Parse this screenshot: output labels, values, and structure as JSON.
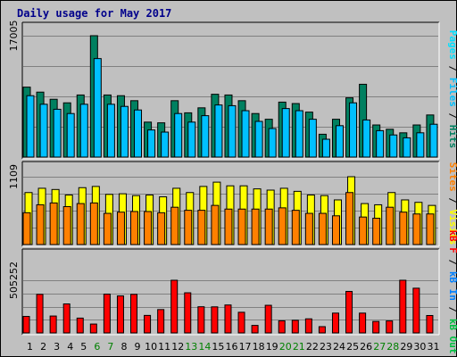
{
  "title": "Daily usage for May 2017",
  "colors": {
    "hits": "#008060",
    "files": "#00c0ff",
    "pages": "#00e0ff",
    "visits": "#ffff00",
    "sites": "#ff8000",
    "kbin": "#0080ff",
    "kbout": "#00c040",
    "kbf": "#ff0000",
    "weekend_label": "#008000",
    "title": "#00008b",
    "plot_bg": "#c0c0c0",
    "grid": "#808080"
  },
  "chart_data": [
    {
      "type": "bar",
      "name": "hits-files-pages",
      "categories": [
        "1",
        "2",
        "3",
        "4",
        "5",
        "6",
        "7",
        "8",
        "9",
        "10",
        "11",
        "12",
        "13",
        "14",
        "15",
        "16",
        "17",
        "18",
        "19",
        "20",
        "21",
        "22",
        "23",
        "24",
        "25",
        "26",
        "27",
        "28",
        "29",
        "30",
        "31"
      ],
      "weekend_days": [
        "6",
        "7",
        "13",
        "14",
        "20",
        "21",
        "27",
        "28"
      ],
      "max_label": "17005",
      "ylim": [
        0,
        17005
      ],
      "series": [
        {
          "name": "Hits",
          "values": [
            9800,
            9100,
            8100,
            7600,
            8700,
            17005,
            8700,
            8600,
            7900,
            4900,
            4800,
            7900,
            6200,
            6900,
            8800,
            8700,
            7900,
            6100,
            5300,
            7700,
            7500,
            6300,
            3200,
            5300,
            8300,
            10200,
            4500,
            3900,
            3400,
            4500,
            5900
          ]
        },
        {
          "name": "Files",
          "values": [
            8600,
            7400,
            6700,
            6100,
            7400,
            13800,
            7400,
            7100,
            6600,
            3800,
            3500,
            6100,
            4900,
            5800,
            7300,
            7200,
            6500,
            5000,
            4000,
            6800,
            6500,
            5300,
            2500,
            4400,
            7600,
            5200,
            3700,
            3100,
            2700,
            3400,
            4600
          ]
        },
        {
          "name": "Pages",
          "values": [
            0,
            0,
            0,
            0,
            0,
            0,
            0,
            0,
            0,
            0,
            0,
            0,
            0,
            0,
            0,
            0,
            0,
            0,
            0,
            0,
            0,
            0,
            0,
            0,
            0,
            0,
            0,
            0,
            0,
            0,
            0
          ]
        }
      ]
    },
    {
      "type": "bar",
      "name": "visits-sites",
      "categories": [
        "1",
        "2",
        "3",
        "4",
        "5",
        "6",
        "7",
        "8",
        "9",
        "10",
        "11",
        "12",
        "13",
        "14",
        "15",
        "16",
        "17",
        "18",
        "19",
        "20",
        "21",
        "22",
        "23",
        "24",
        "25",
        "26",
        "27",
        "28",
        "29",
        "30",
        "31"
      ],
      "max_label": "1109",
      "ylim": [
        0,
        1109
      ],
      "series": [
        {
          "name": "Visits",
          "values": [
            850,
            920,
            900,
            810,
            930,
            950,
            820,
            830,
            800,
            810,
            780,
            920,
            850,
            950,
            1020,
            960,
            960,
            910,
            890,
            920,
            870,
            810,
            800,
            730,
            1109,
            670,
            650,
            850,
            730,
            690,
            640
          ]
        },
        {
          "name": "Sites",
          "values": [
            520,
            650,
            680,
            620,
            670,
            680,
            510,
            530,
            540,
            540,
            520,
            610,
            560,
            560,
            640,
            580,
            580,
            580,
            580,
            600,
            560,
            510,
            510,
            470,
            850,
            450,
            430,
            610,
            530,
            500,
            500
          ]
        }
      ]
    },
    {
      "type": "bar",
      "name": "kbytes",
      "categories": [
        "1",
        "2",
        "3",
        "4",
        "5",
        "6",
        "7",
        "8",
        "9",
        "10",
        "11",
        "12",
        "13",
        "14",
        "15",
        "16",
        "17",
        "18",
        "19",
        "20",
        "21",
        "22",
        "23",
        "24",
        "25",
        "26",
        "27",
        "28",
        "29",
        "30",
        "31"
      ],
      "max_label": "505252",
      "ylim": [
        0,
        505252
      ],
      "series": [
        {
          "name": "KB In",
          "values": [
            0,
            0,
            0,
            0,
            0,
            0,
            0,
            0,
            0,
            0,
            0,
            0,
            0,
            0,
            0,
            0,
            0,
            0,
            0,
            0,
            0,
            0,
            0,
            0,
            0,
            0,
            0,
            0,
            0,
            0,
            0
          ]
        },
        {
          "name": "KB Out",
          "values": [
            0,
            0,
            0,
            0,
            0,
            0,
            0,
            0,
            0,
            0,
            0,
            0,
            0,
            0,
            0,
            0,
            0,
            0,
            0,
            0,
            0,
            0,
            0,
            0,
            0,
            0,
            0,
            0,
            0,
            0,
            0
          ]
        },
        {
          "name": "KB F",
          "values": [
            158000,
            370000,
            162000,
            278000,
            142000,
            85000,
            372000,
            355000,
            370000,
            168000,
            224000,
            505252,
            385000,
            251000,
            250000,
            268000,
            198000,
            72000,
            265000,
            116000,
            121000,
            135000,
            60000,
            190000,
            398000,
            190000,
            110000,
            115000,
            505252,
            429000,
            167000
          ]
        }
      ]
    }
  ],
  "right_legend": {
    "top": [
      {
        "text": "Pages",
        "color": "#00e0ff"
      },
      {
        "text": " / ",
        "color": "#000000"
      },
      {
        "text": "Files",
        "color": "#00c0ff"
      },
      {
        "text": " / ",
        "color": "#000000"
      },
      {
        "text": "Hits",
        "color": "#008060"
      }
    ],
    "middle": [
      {
        "text": "Sites",
        "color": "#ff8000"
      },
      {
        "text": " / ",
        "color": "#000000"
      },
      {
        "text": "Visits",
        "color": "#ffff00"
      }
    ],
    "bottom": [
      {
        "text": "kB F",
        "color": "#ff0000"
      },
      {
        "text": " / ",
        "color": "#000000"
      },
      {
        "text": "kB In",
        "color": "#0080ff"
      },
      {
        "text": " / ",
        "color": "#000000"
      },
      {
        "text": "kB Out",
        "color": "#00c040"
      }
    ]
  }
}
